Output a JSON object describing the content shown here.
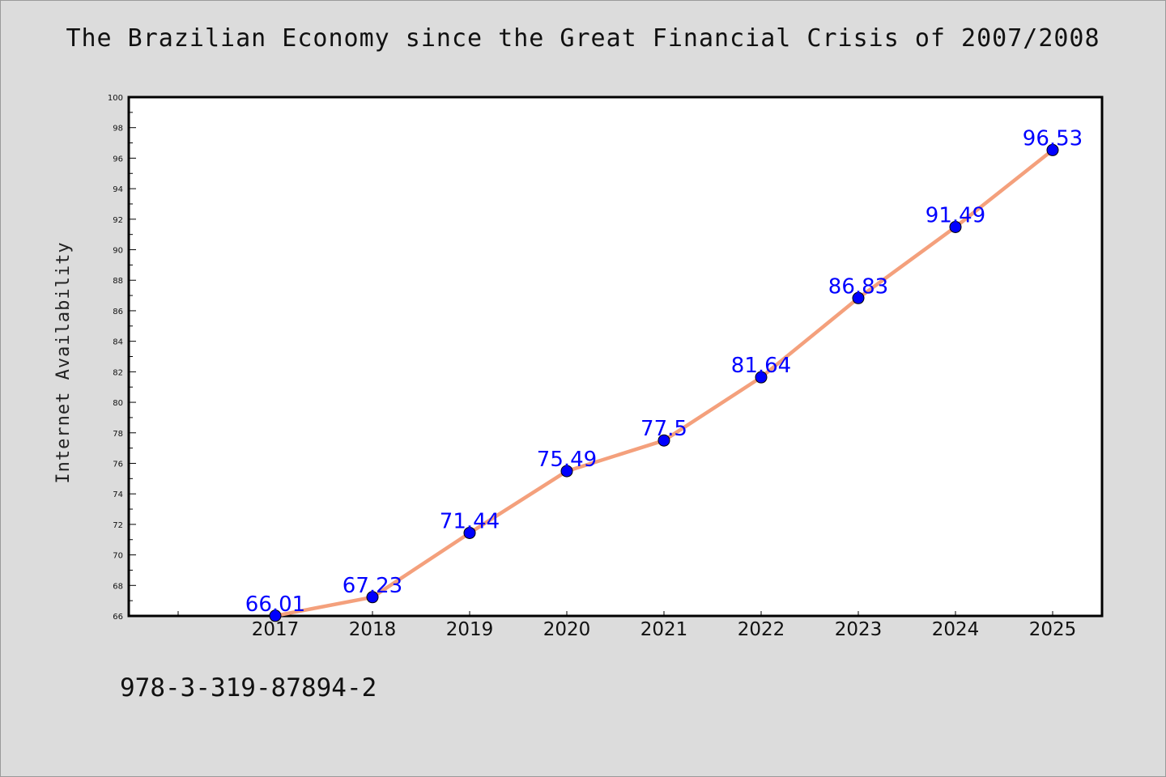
{
  "chart_data": {
    "type": "line",
    "title": "The Brazilian Economy since the Great Financial Crisis of 2007/2008",
    "xlabel": "",
    "ylabel": "Internet Availability",
    "categories": [
      "2017",
      "2018",
      "2019",
      "2020",
      "2021",
      "2022",
      "2023",
      "2024",
      "2025"
    ],
    "series": [
      {
        "values": [
          66.01,
          67.23,
          71.44,
          75.49,
          77.5,
          81.64,
          86.83,
          91.49,
          96.53
        ],
        "labels": [
          "66.01",
          "67.23",
          "71.44",
          "75.49",
          "77.5",
          "81.64",
          "86.83",
          "91.49",
          "96.53"
        ],
        "line_color": "#f4a07c",
        "marker_color": "#0000ff"
      }
    ],
    "ylim": [
      66,
      100
    ],
    "y_ticks": [
      "66",
      "68",
      "70",
      "72",
      "74",
      "76",
      "78",
      "80",
      "82",
      "84",
      "86",
      "88",
      "90",
      "92",
      "94",
      "96",
      "98",
      "100"
    ],
    "grid": false,
    "legend": "none",
    "plot_background": "#ffffff",
    "figure_background": "#dcdcdc"
  },
  "footer": {
    "code": "978-3-319-87894-2"
  }
}
